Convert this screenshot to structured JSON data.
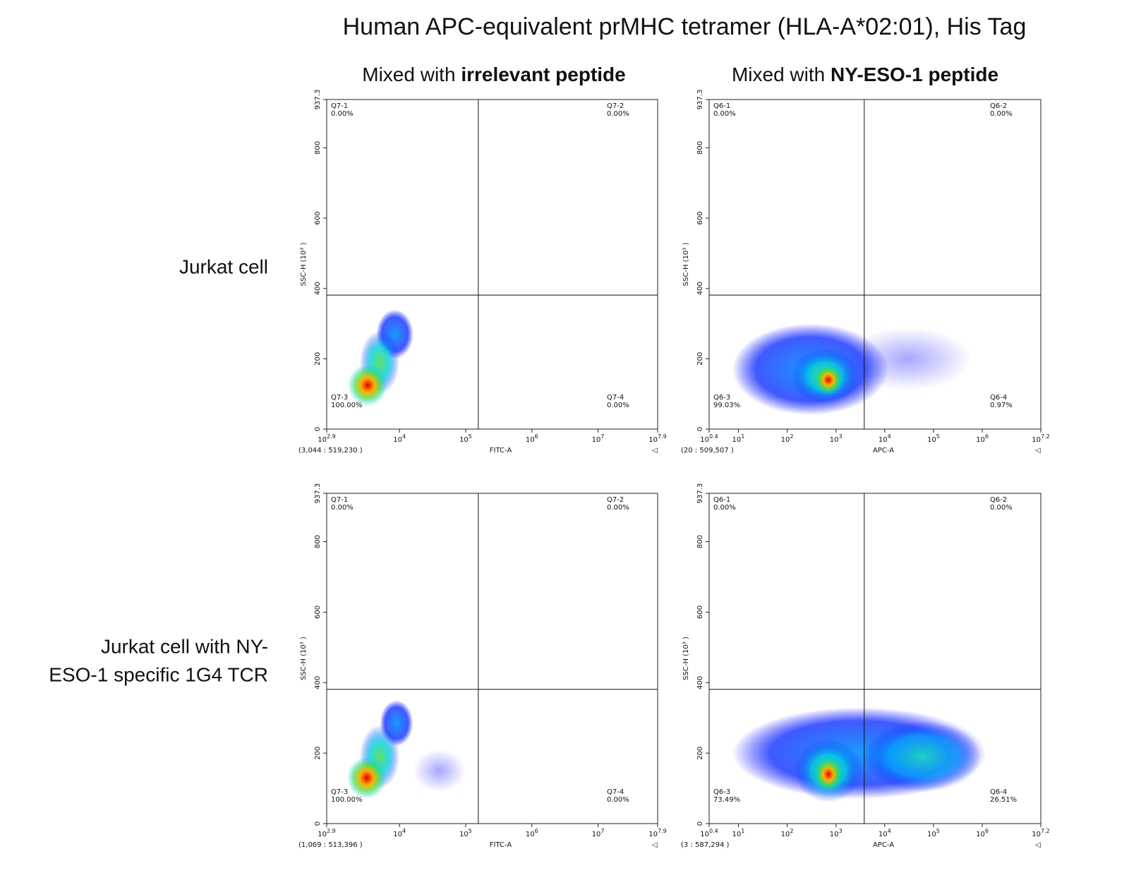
{
  "title": "Human APC-equivalent prMHC tetramer (HLA-A*02:01), His Tag",
  "column_titles": [
    {
      "prefix": "Mixed with",
      "emphasis": "irrelevant peptide"
    },
    {
      "prefix": "Mixed with",
      "emphasis": "NY-ESO-1 peptide"
    }
  ],
  "row_labels": [
    {
      "lines": [
        "Jurkat cell"
      ]
    },
    {
      "lines": [
        "Jurkat cell with  NY-",
        "ESO-1 specific 1G4 TCR"
      ]
    }
  ],
  "chart_data": [
    {
      "type": "density",
      "xlabel": "FITC-A",
      "ylabel": "SSC-H (10³ )",
      "x_log": true,
      "xlim": [
        794.33,
        79432823.5
      ],
      "xticks": [
        {
          "value": 794.33,
          "label": "10^2.9"
        },
        {
          "value": 10000,
          "label": "10^4"
        },
        {
          "value": 100000,
          "label": "10^5"
        },
        {
          "value": 1000000,
          "label": "10^6"
        },
        {
          "value": 10000000,
          "label": "10^7"
        },
        {
          "value": 79432823.5,
          "label": "10^7.9"
        }
      ],
      "ylim": [
        0,
        937.3
      ],
      "yticks": [
        0,
        200,
        400,
        600,
        800,
        937.3
      ],
      "gate": {
        "x": 155000,
        "y": 381
      },
      "quadrants": {
        "names": [
          "Q7-1",
          "Q7-2",
          "Q7-3",
          "Q7-4"
        ],
        "values": [
          0,
          0,
          100,
          0
        ],
        "value_labels": [
          "0.00%",
          "0.00%",
          "100.00%",
          "0.00%"
        ]
      },
      "status": "(3,044 : 519,230 )",
      "clusters": [
        {
          "x": 8500,
          "y": 270,
          "x_spread": 0.28,
          "y_spread": 70,
          "level": "cool"
        },
        {
          "x": 5000,
          "y": 190,
          "x_spread": 0.3,
          "y_spread": 90,
          "level": "warm"
        },
        {
          "x": 3300,
          "y": 125,
          "x_spread": 0.3,
          "y_spread": 60,
          "level": "hot"
        }
      ]
    },
    {
      "type": "density",
      "xlabel": "APC-A",
      "ylabel": "SSC-H (10³ )",
      "x_log": true,
      "xlim": [
        2.512,
        15848932
      ],
      "xticks": [
        {
          "value": 2.512,
          "label": "10^0.4"
        },
        {
          "value": 10,
          "label": "10^1"
        },
        {
          "value": 100,
          "label": "10^2"
        },
        {
          "value": 1000,
          "label": "10^3"
        },
        {
          "value": 10000,
          "label": "10^4"
        },
        {
          "value": 100000,
          "label": "10^5"
        },
        {
          "value": 1000000,
          "label": "10^6"
        },
        {
          "value": 15848932,
          "label": "10^7.2"
        }
      ],
      "ylim": [
        0,
        937.3
      ],
      "yticks": [
        0,
        200,
        400,
        600,
        800,
        937.3
      ],
      "gate": {
        "x": 3800,
        "y": 381
      },
      "quadrants": {
        "names": [
          "Q6-1",
          "Q6-2",
          "Q6-3",
          "Q6-4"
        ],
        "values": [
          0,
          0,
          99.03,
          0.97
        ],
        "value_labels": [
          "0.00%",
          "0.00%",
          "99.03%",
          "0.97%"
        ]
      },
      "status": "(20 : 509,507 )",
      "clusters": [
        {
          "x": 30000,
          "y": 200,
          "x_spread": 1.3,
          "y_spread": 90,
          "level": "sparse"
        },
        {
          "x": 300,
          "y": 170,
          "x_spread": 1.6,
          "y_spread": 130,
          "level": "cool"
        },
        {
          "x": 600,
          "y": 150,
          "x_spread": 0.7,
          "y_spread": 80,
          "level": "warm"
        },
        {
          "x": 700,
          "y": 140,
          "x_spread": 0.3,
          "y_spread": 45,
          "level": "hot"
        }
      ]
    },
    {
      "type": "density",
      "xlabel": "FITC-A",
      "ylabel": "SSC-H (10³ )",
      "x_log": true,
      "xlim": [
        794.33,
        79432823.5
      ],
      "xticks": [
        {
          "value": 794.33,
          "label": "10^2.9"
        },
        {
          "value": 10000,
          "label": "10^4"
        },
        {
          "value": 100000,
          "label": "10^5"
        },
        {
          "value": 1000000,
          "label": "10^6"
        },
        {
          "value": 10000000,
          "label": "10^7"
        },
        {
          "value": 79432823.5,
          "label": "10^7.9"
        }
      ],
      "ylim": [
        0,
        937.3
      ],
      "yticks": [
        0,
        200,
        400,
        600,
        800,
        937.3
      ],
      "gate": {
        "x": 155000,
        "y": 381
      },
      "quadrants": {
        "names": [
          "Q7-1",
          "Q7-2",
          "Q7-3",
          "Q7-4"
        ],
        "values": [
          0,
          0,
          100,
          0
        ],
        "value_labels": [
          "0.00%",
          "0.00%",
          "100.00%",
          "0.00%"
        ]
      },
      "status": "(1,069 : 513,396 )",
      "clusters": [
        {
          "x": 40000,
          "y": 150,
          "x_spread": 0.4,
          "y_spread": 60,
          "level": "sparse"
        },
        {
          "x": 9000,
          "y": 285,
          "x_spread": 0.25,
          "y_spread": 65,
          "level": "cool"
        },
        {
          "x": 5000,
          "y": 190,
          "x_spread": 0.3,
          "y_spread": 90,
          "level": "warm"
        },
        {
          "x": 3200,
          "y": 130,
          "x_spread": 0.3,
          "y_spread": 60,
          "level": "hot"
        }
      ]
    },
    {
      "type": "density",
      "xlabel": "APC-A",
      "ylabel": "SSC-H (10³ )",
      "x_log": true,
      "xlim": [
        2.512,
        15848932
      ],
      "xticks": [
        {
          "value": 2.512,
          "label": "10^0.4"
        },
        {
          "value": 10,
          "label": "10^1"
        },
        {
          "value": 100,
          "label": "10^2"
        },
        {
          "value": 1000,
          "label": "10^3"
        },
        {
          "value": 10000,
          "label": "10^4"
        },
        {
          "value": 100000,
          "label": "10^5"
        },
        {
          "value": 1000000,
          "label": "10^6"
        },
        {
          "value": 15848932,
          "label": "10^7.2"
        }
      ],
      "ylim": [
        0,
        937.3
      ],
      "yticks": [
        0,
        200,
        400,
        600,
        800,
        937.3
      ],
      "gate": {
        "x": 3800,
        "y": 381
      },
      "quadrants": {
        "names": [
          "Q6-1",
          "Q6-2",
          "Q6-3",
          "Q6-4"
        ],
        "values": [
          0,
          0,
          73.49,
          26.51
        ],
        "value_labels": [
          "0.00%",
          "0.00%",
          "73.49%",
          "26.51%"
        ]
      },
      "status": "(3 : 587,294 )",
      "clusters": [
        {
          "x": 3000,
          "y": 200,
          "x_spread": 2.6,
          "y_spread": 130,
          "level": "cool"
        },
        {
          "x": 60000,
          "y": 190,
          "x_spread": 1.2,
          "y_spread": 100,
          "level": "cyan"
        },
        {
          "x": 700,
          "y": 150,
          "x_spread": 0.7,
          "y_spread": 90,
          "level": "warm"
        },
        {
          "x": 700,
          "y": 140,
          "x_spread": 0.3,
          "y_spread": 50,
          "level": "hot"
        }
      ]
    }
  ]
}
